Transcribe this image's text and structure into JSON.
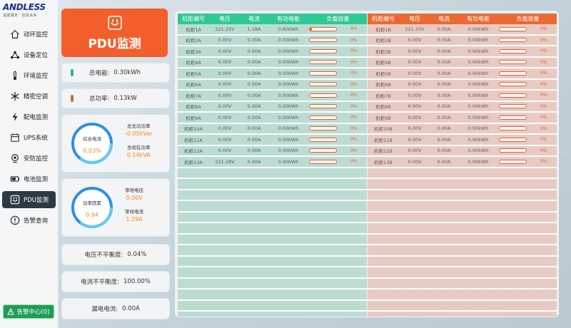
{
  "logo": {
    "main": "ANDLESS",
    "sub": "温度服务　创造未来"
  },
  "nav": [
    {
      "label": "动环监控",
      "icon": "home-icon"
    },
    {
      "label": "设备定位",
      "icon": "network-icon"
    },
    {
      "label": "环境监控",
      "icon": "thermometer-icon"
    },
    {
      "label": "精密空调",
      "icon": "snowflake-icon"
    },
    {
      "label": "配电监测",
      "icon": "lightning-icon"
    },
    {
      "label": "UPS系统",
      "icon": "calendar-icon"
    },
    {
      "label": "安防监控",
      "icon": "camera-icon"
    },
    {
      "label": "电池监测",
      "icon": "battery-icon"
    },
    {
      "label": "PDU监测",
      "icon": "plug-icon",
      "active": true
    },
    {
      "label": "告警查询",
      "icon": "alert-icon"
    }
  ],
  "alarm_center": "告警中心(0)",
  "pdu_title": "PDU监测",
  "total_energy": {
    "label": "总电能:",
    "value": "0.30kWh",
    "color": "#26b88a"
  },
  "total_power": {
    "label": "总功率:",
    "value": "0.13kW",
    "color": "#c8703b"
  },
  "current_gauge": {
    "label": "综合电流",
    "value": "0.03%",
    "side": [
      {
        "label": "总无功功率",
        "value": "-0.05kVar"
      },
      {
        "label": "总视在功率",
        "value": "0.14kVA"
      }
    ]
  },
  "pf_gauge": {
    "label": "功率因素",
    "value": "0.94",
    "side": [
      {
        "label": "零地电压",
        "value": "0.00V"
      },
      {
        "label": "零线电流",
        "value": "1.29A"
      }
    ]
  },
  "voltage_unbalance": {
    "label": "电压不平衡度:",
    "value": "0.04%"
  },
  "current_unbalance": {
    "label": "电流不平衡度:",
    "value": "100.00%"
  },
  "leakage": {
    "label": "漏电电流:",
    "value": "0.00A"
  },
  "table_headers": [
    "机柜编号",
    "电压",
    "电流",
    "有功电能",
    "负载容量"
  ],
  "table_a": [
    {
      "id": "机柜1A",
      "v": "221.25V",
      "i": "1.18A",
      "e": "0.80kWh",
      "load": 4
    },
    {
      "id": "机柜2A",
      "v": "0.00V",
      "i": "0.00A",
      "e": "0.00kWh",
      "load": 0
    },
    {
      "id": "机柜3A",
      "v": "0.00V",
      "i": "0.00A",
      "e": "0.00kWh",
      "load": 0
    },
    {
      "id": "机柜4A",
      "v": "0.00V",
      "i": "0.00A",
      "e": "0.00kWh",
      "load": 0
    },
    {
      "id": "机柜5A",
      "v": "0.00V",
      "i": "0.00A",
      "e": "0.00kWh",
      "load": 0
    },
    {
      "id": "机柜6A",
      "v": "0.00V",
      "i": "0.00A",
      "e": "0.00kWh",
      "load": 0
    },
    {
      "id": "机柜7A",
      "v": "0.00V",
      "i": "0.00A",
      "e": "0.00kWh",
      "load": 0
    },
    {
      "id": "机柜8A",
      "v": "0.00V",
      "i": "0.00A",
      "e": "0.00kWh",
      "load": 0
    },
    {
      "id": "机柜9A",
      "v": "0.00V",
      "i": "0.00A",
      "e": "0.00kWh",
      "load": 0
    },
    {
      "id": "机柜10A",
      "v": "0.00V",
      "i": "0.00A",
      "e": "0.00kWh",
      "load": 0
    },
    {
      "id": "机柜11A",
      "v": "0.00V",
      "i": "0.00A",
      "e": "0.00kWh",
      "load": 0
    },
    {
      "id": "机柜12A",
      "v": "0.00V",
      "i": "0.00A",
      "e": "0.00kWh",
      "load": 0
    },
    {
      "id": "机柜13A",
      "v": "221.28V",
      "i": "0.00A",
      "e": "0.00kWh",
      "load": 0
    }
  ],
  "table_b": [
    {
      "id": "机柜1B",
      "v": "221.33V",
      "i": "0.00A",
      "e": "0.00kWh",
      "load": 0
    },
    {
      "id": "机柜2B",
      "v": "0.00V",
      "i": "0.00A",
      "e": "0.00kWh",
      "load": 0
    },
    {
      "id": "机柜3B",
      "v": "0.00V",
      "i": "0.00A",
      "e": "0.00kWh",
      "load": 0
    },
    {
      "id": "机柜4B",
      "v": "0.00V",
      "i": "0.00A",
      "e": "0.00kWh",
      "load": 0
    },
    {
      "id": "机柜5B",
      "v": "0.00V",
      "i": "0.00A",
      "e": "0.00kWh",
      "load": 0
    },
    {
      "id": "机柜6B",
      "v": "0.00V",
      "i": "0.00A",
      "e": "0.00kWh",
      "load": 0
    },
    {
      "id": "机柜7B",
      "v": "0.00V",
      "i": "0.00A",
      "e": "0.00kWh",
      "load": 0
    },
    {
      "id": "机柜8B",
      "v": "0.00V",
      "i": "0.00A",
      "e": "0.00kWh",
      "load": 0
    },
    {
      "id": "机柜9B",
      "v": "0.00V",
      "i": "0.00A",
      "e": "0.00kWh",
      "load": 0
    },
    {
      "id": "机柜10B",
      "v": "0.00V",
      "i": "0.00A",
      "e": "0.00kWh",
      "load": 0
    },
    {
      "id": "机柜11B",
      "v": "0.00V",
      "i": "0.00A",
      "e": "0.00kWh",
      "load": 0
    },
    {
      "id": "机柜12B",
      "v": "0.00V",
      "i": "0.00A",
      "e": "0.00kWh",
      "load": 0
    },
    {
      "id": "机柜13B",
      "v": "0.00V",
      "i": "0.00A",
      "e": "0.00kWh",
      "load": 0
    }
  ],
  "colors": {
    "accent": "#f25e2c",
    "green_header": "#2fc993",
    "orange_header": "#ea6a31",
    "value": "#f28a22"
  }
}
